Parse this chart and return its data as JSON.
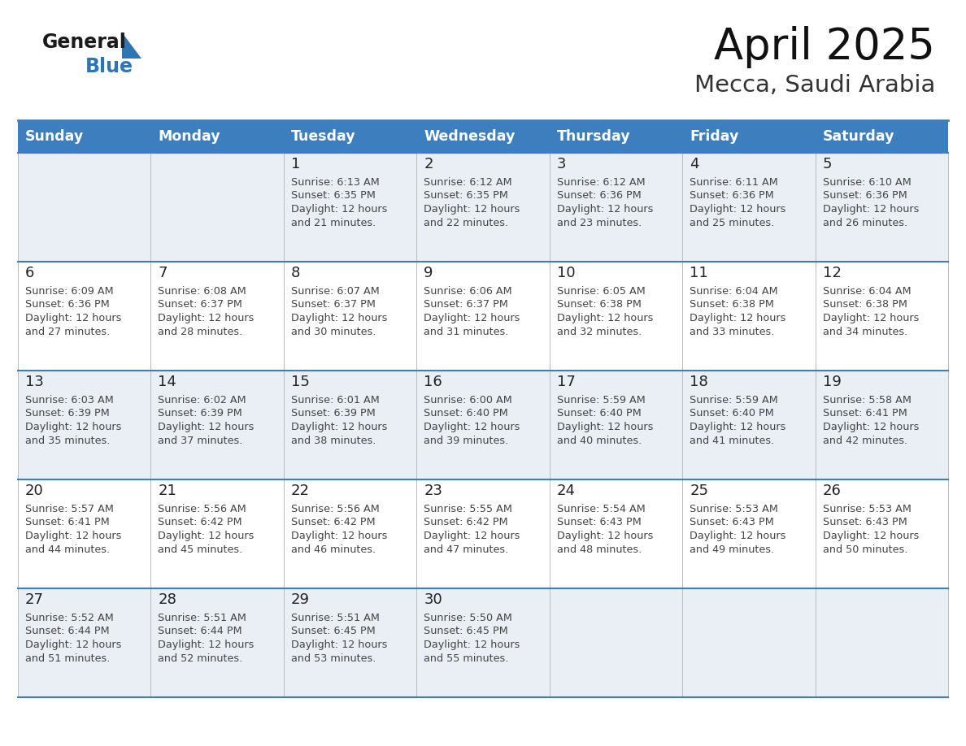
{
  "title": "April 2025",
  "subtitle": "Mecca, Saudi Arabia",
  "header_color": "#3D7EBF",
  "header_text_color": "#FFFFFF",
  "days_of_week": [
    "Sunday",
    "Monday",
    "Tuesday",
    "Wednesday",
    "Thursday",
    "Friday",
    "Saturday"
  ],
  "cell_bg_light": "#EAEFF5",
  "cell_bg_white": "#FFFFFF",
  "row_line_color": "#3D7EBF",
  "col_line_color": "#BBBBBB",
  "date_color": "#222222",
  "text_color": "#444444",
  "logo_general_color": "#1A1A1A",
  "logo_blue_color": "#2E75B6",
  "calendar": [
    [
      {
        "date": null,
        "sunrise": null,
        "sunset": null,
        "daylight_min": null
      },
      {
        "date": null,
        "sunrise": null,
        "sunset": null,
        "daylight_min": null
      },
      {
        "date": "1",
        "sunrise": "6:13 AM",
        "sunset": "6:35 PM",
        "daylight_min": 21
      },
      {
        "date": "2",
        "sunrise": "6:12 AM",
        "sunset": "6:35 PM",
        "daylight_min": 22
      },
      {
        "date": "3",
        "sunrise": "6:12 AM",
        "sunset": "6:36 PM",
        "daylight_min": 23
      },
      {
        "date": "4",
        "sunrise": "6:11 AM",
        "sunset": "6:36 PM",
        "daylight_min": 25
      },
      {
        "date": "5",
        "sunrise": "6:10 AM",
        "sunset": "6:36 PM",
        "daylight_min": 26
      }
    ],
    [
      {
        "date": "6",
        "sunrise": "6:09 AM",
        "sunset": "6:36 PM",
        "daylight_min": 27
      },
      {
        "date": "7",
        "sunrise": "6:08 AM",
        "sunset": "6:37 PM",
        "daylight_min": 28
      },
      {
        "date": "8",
        "sunrise": "6:07 AM",
        "sunset": "6:37 PM",
        "daylight_min": 30
      },
      {
        "date": "9",
        "sunrise": "6:06 AM",
        "sunset": "6:37 PM",
        "daylight_min": 31
      },
      {
        "date": "10",
        "sunrise": "6:05 AM",
        "sunset": "6:38 PM",
        "daylight_min": 32
      },
      {
        "date": "11",
        "sunrise": "6:04 AM",
        "sunset": "6:38 PM",
        "daylight_min": 33
      },
      {
        "date": "12",
        "sunrise": "6:04 AM",
        "sunset": "6:38 PM",
        "daylight_min": 34
      }
    ],
    [
      {
        "date": "13",
        "sunrise": "6:03 AM",
        "sunset": "6:39 PM",
        "daylight_min": 35
      },
      {
        "date": "14",
        "sunrise": "6:02 AM",
        "sunset": "6:39 PM",
        "daylight_min": 37
      },
      {
        "date": "15",
        "sunrise": "6:01 AM",
        "sunset": "6:39 PM",
        "daylight_min": 38
      },
      {
        "date": "16",
        "sunrise": "6:00 AM",
        "sunset": "6:40 PM",
        "daylight_min": 39
      },
      {
        "date": "17",
        "sunrise": "5:59 AM",
        "sunset": "6:40 PM",
        "daylight_min": 40
      },
      {
        "date": "18",
        "sunrise": "5:59 AM",
        "sunset": "6:40 PM",
        "daylight_min": 41
      },
      {
        "date": "19",
        "sunrise": "5:58 AM",
        "sunset": "6:41 PM",
        "daylight_min": 42
      }
    ],
    [
      {
        "date": "20",
        "sunrise": "5:57 AM",
        "sunset": "6:41 PM",
        "daylight_min": 44
      },
      {
        "date": "21",
        "sunrise": "5:56 AM",
        "sunset": "6:42 PM",
        "daylight_min": 45
      },
      {
        "date": "22",
        "sunrise": "5:56 AM",
        "sunset": "6:42 PM",
        "daylight_min": 46
      },
      {
        "date": "23",
        "sunrise": "5:55 AM",
        "sunset": "6:42 PM",
        "daylight_min": 47
      },
      {
        "date": "24",
        "sunrise": "5:54 AM",
        "sunset": "6:43 PM",
        "daylight_min": 48
      },
      {
        "date": "25",
        "sunrise": "5:53 AM",
        "sunset": "6:43 PM",
        "daylight_min": 49
      },
      {
        "date": "26",
        "sunrise": "5:53 AM",
        "sunset": "6:43 PM",
        "daylight_min": 50
      }
    ],
    [
      {
        "date": "27",
        "sunrise": "5:52 AM",
        "sunset": "6:44 PM",
        "daylight_min": 51
      },
      {
        "date": "28",
        "sunrise": "5:51 AM",
        "sunset": "6:44 PM",
        "daylight_min": 52
      },
      {
        "date": "29",
        "sunrise": "5:51 AM",
        "sunset": "6:45 PM",
        "daylight_min": 53
      },
      {
        "date": "30",
        "sunrise": "5:50 AM",
        "sunset": "6:45 PM",
        "daylight_min": 55
      },
      {
        "date": null,
        "sunrise": null,
        "sunset": null,
        "daylight_min": null
      },
      {
        "date": null,
        "sunrise": null,
        "sunset": null,
        "daylight_min": null
      },
      {
        "date": null,
        "sunrise": null,
        "sunset": null,
        "daylight_min": null
      }
    ]
  ]
}
